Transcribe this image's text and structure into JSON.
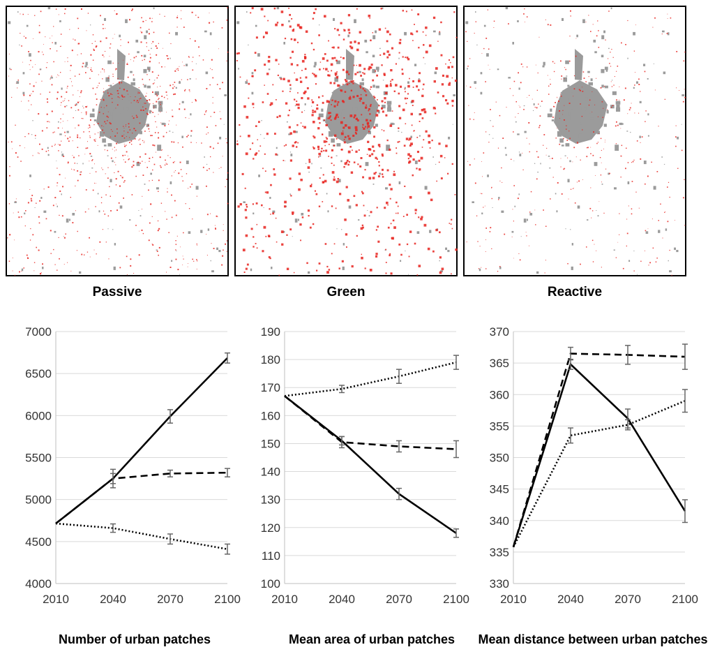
{
  "maps": {
    "labels": [
      "Passive",
      "Green",
      "Reactive"
    ],
    "colors": {
      "urban_existing": "#9b9b9b",
      "urban_new": "#e8231f",
      "background": "#ffffff"
    }
  },
  "chart_data": [
    {
      "type": "line",
      "title": "Number of urban patches",
      "categories": [
        "2010",
        "2040",
        "2070",
        "2100"
      ],
      "ylim": [
        4000,
        7000
      ],
      "yticks": [
        4000,
        4500,
        5000,
        5500,
        6000,
        6500,
        7000
      ],
      "grid": true,
      "series": [
        {
          "style": "solid",
          "values": [
            4715,
            5250,
            5990,
            6685
          ],
          "err": [
            0,
            60,
            80,
            60
          ]
        },
        {
          "style": "dashed",
          "values": [
            4715,
            5250,
            5310,
            5320
          ],
          "err": [
            0,
            110,
            40,
            50
          ]
        },
        {
          "style": "dotted",
          "values": [
            4715,
            4660,
            4530,
            4410
          ],
          "err": [
            0,
            50,
            60,
            60
          ]
        }
      ]
    },
    {
      "type": "line",
      "title": "Mean area of urban patches",
      "categories": [
        "2010",
        "2040",
        "2070",
        "2100"
      ],
      "ylim": [
        100,
        190
      ],
      "yticks": [
        100,
        110,
        120,
        130,
        140,
        150,
        160,
        170,
        180,
        190
      ],
      "grid": true,
      "series": [
        {
          "style": "solid",
          "values": [
            167,
            151,
            132,
            118
          ],
          "err": [
            0,
            1.5,
            2,
            1.5
          ]
        },
        {
          "style": "dashed",
          "values": [
            167,
            150.5,
            149,
            148
          ],
          "err": [
            0,
            2,
            2,
            3
          ]
        },
        {
          "style": "dotted",
          "values": [
            167,
            169.5,
            174,
            179
          ],
          "err": [
            0,
            1.3,
            2.5,
            2.5
          ]
        }
      ]
    },
    {
      "type": "line",
      "title": "Mean distance between urban patches",
      "categories": [
        "2010",
        "2040",
        "2070",
        "2100"
      ],
      "ylim": [
        330,
        370
      ],
      "yticks": [
        330,
        335,
        340,
        345,
        350,
        355,
        360,
        365,
        370
      ],
      "grid": true,
      "series": [
        {
          "style": "solid",
          "values": [
            335.8,
            364.8,
            356.2,
            341.5
          ],
          "err": [
            0,
            0.8,
            1.5,
            1.8
          ]
        },
        {
          "style": "dashed",
          "values": [
            335.8,
            366.5,
            366.3,
            366
          ],
          "err": [
            0,
            1,
            1.5,
            2
          ]
        },
        {
          "style": "dotted",
          "values": [
            335.8,
            353.5,
            355.2,
            359
          ],
          "err": [
            0,
            1.2,
            0.8,
            1.8
          ]
        }
      ]
    }
  ],
  "chart_titles": [
    "Number of urban patches",
    "Mean area of urban patches",
    "Mean distance between urban patches"
  ]
}
